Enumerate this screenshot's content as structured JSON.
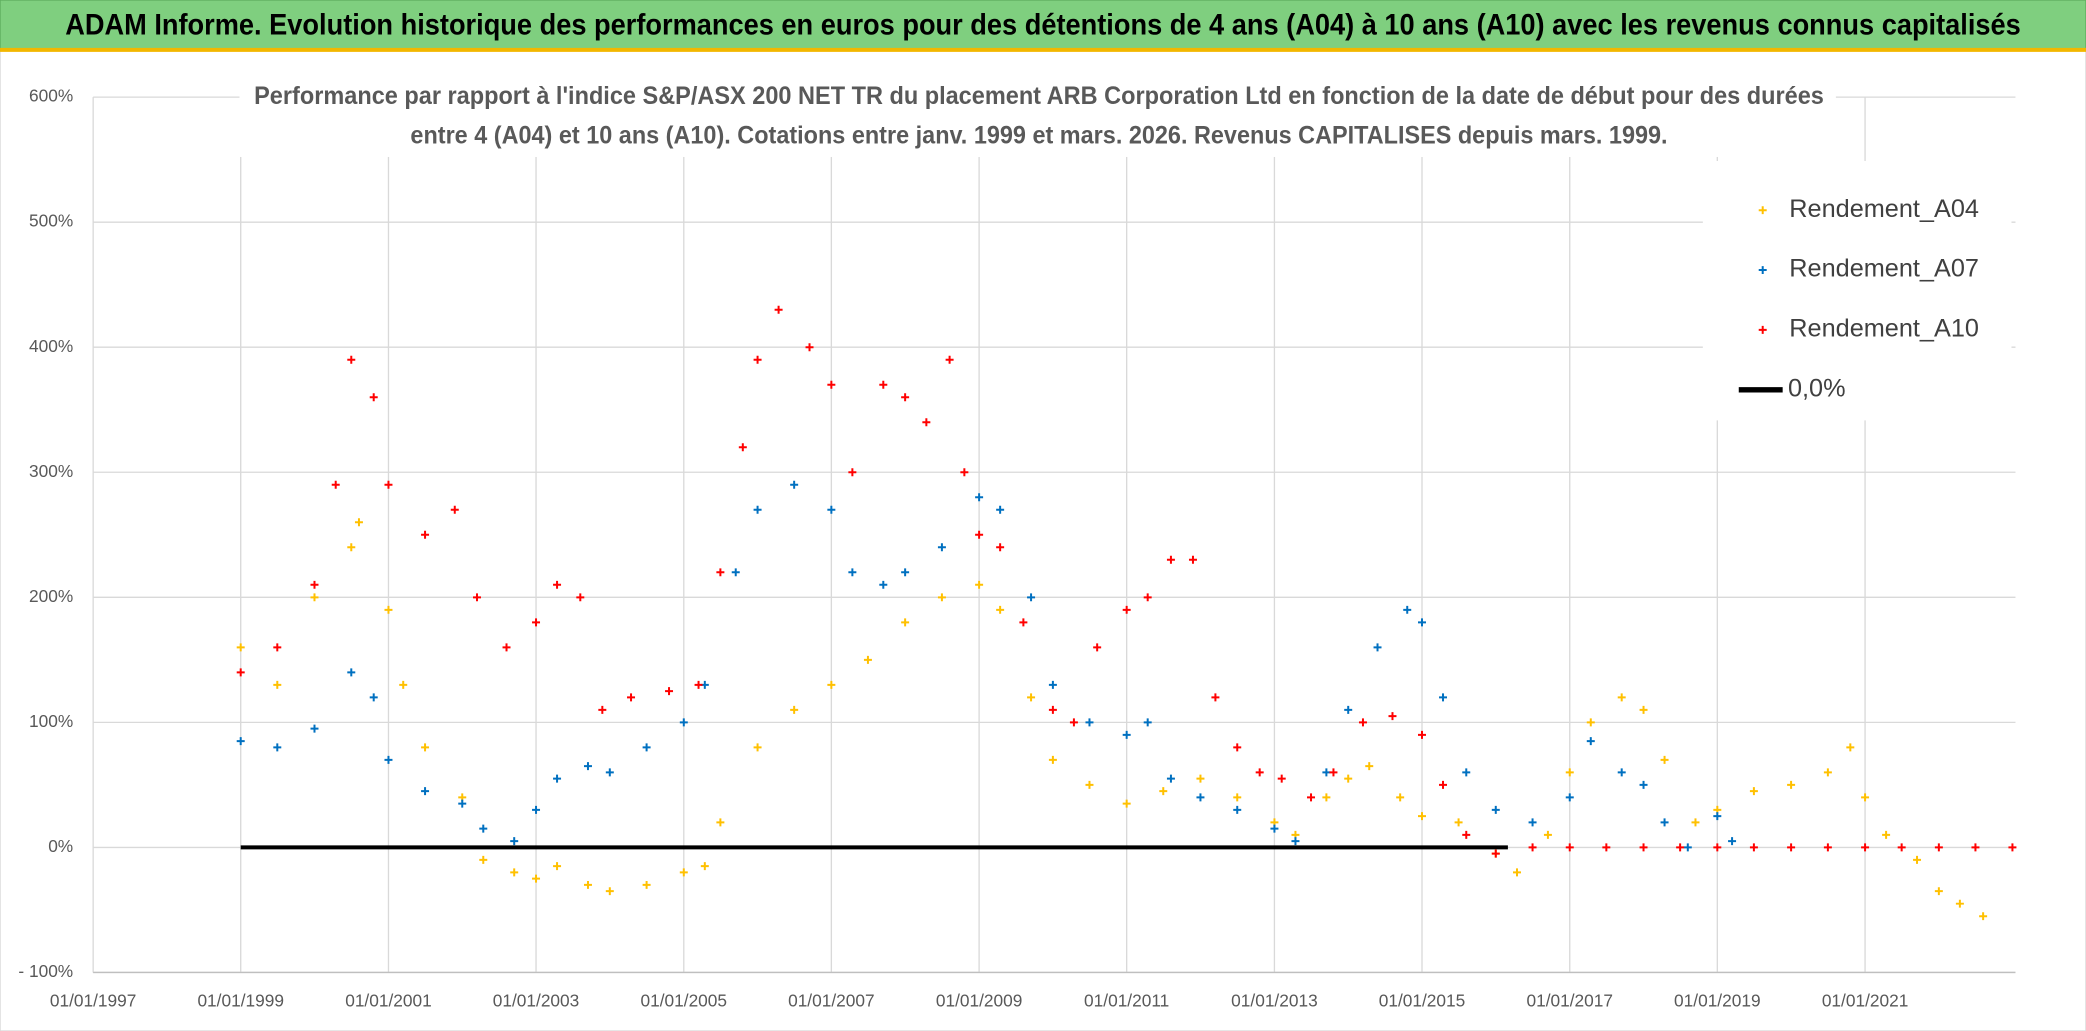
{
  "header": {
    "title": "ADAM Informe. Evolution historique des performances en euros pour des détentions de 4 ans (A04) à 10 ans (A10) avec les revenus connus capitalisés"
  },
  "chart_data": {
    "type": "scatter",
    "title_lines": [
      "Performance par rapport à l'indice S&P/ASX 200 NET TR  du placement ARB Corporation Ltd en fonction de la date de début pour des durées",
      "entre 4 (A04) et 10 ans (A10). Cotations entre janv. 1999 et mars. 2026. Revenus CAPITALISES depuis mars. 1999."
    ],
    "xlim": [
      "1997-01-01",
      "2023-01-15"
    ],
    "xticks": [
      {
        "value": "1997-01-01",
        "label": "01/01/1997"
      },
      {
        "value": "1999-01-01",
        "label": "01/01/1999"
      },
      {
        "value": "2001-01-01",
        "label": "01/01/2001"
      },
      {
        "value": "2003-01-01",
        "label": "01/01/2003"
      },
      {
        "value": "2005-01-01",
        "label": "01/01/2005"
      },
      {
        "value": "2007-01-01",
        "label": "01/01/2007"
      },
      {
        "value": "2009-01-01",
        "label": "01/01/2009"
      },
      {
        "value": "2011-01-01",
        "label": "01/01/2011"
      },
      {
        "value": "2013-01-01",
        "label": "01/01/2013"
      },
      {
        "value": "2015-01-01",
        "label": "01/01/2015"
      },
      {
        "value": "2017-01-01",
        "label": "01/01/2017"
      },
      {
        "value": "2019-01-01",
        "label": "01/01/2019"
      },
      {
        "value": "2021-01-01",
        "label": "01/01/2021"
      }
    ],
    "ylim": [
      -100,
      600
    ],
    "yticks": [
      {
        "value": -100,
        "label": "- 100%"
      },
      {
        "value": 0,
        "label": "0%"
      },
      {
        "value": 100,
        "label": "100%"
      },
      {
        "value": 200,
        "label": "200%"
      },
      {
        "value": 300,
        "label": "300%"
      },
      {
        "value": 400,
        "label": "400%"
      },
      {
        "value": 500,
        "label": "500%"
      },
      {
        "value": 600,
        "label": "600%"
      }
    ],
    "grid": true,
    "legend": "upper right",
    "series": [
      {
        "name": "Rendement_A04",
        "color": "#FFC000",
        "marker": "plus",
        "x": [
          "1999-01-01",
          "1999-07-01",
          "2000-01-01",
          "2000-07-01",
          "2000-08-08",
          "2001-01-01",
          "2001-03-15",
          "2001-07-01",
          "2002-01-01",
          "2002-04-15",
          "2002-09-15",
          "2003-01-01",
          "2003-04-15",
          "2003-09-15",
          "2004-01-01",
          "2004-07-01",
          "2005-01-01",
          "2005-04-15",
          "2005-07-01",
          "2006-01-01",
          "2006-07-01",
          "2007-01-01",
          "2007-07-01",
          "2008-01-01",
          "2008-07-01",
          "2009-01-01",
          "2009-04-15",
          "2009-09-15",
          "2010-01-01",
          "2010-07-01",
          "2011-01-01",
          "2011-07-01",
          "2012-01-01",
          "2012-07-01",
          "2013-01-01",
          "2013-04-15",
          "2013-09-15",
          "2014-01-01",
          "2014-04-15",
          "2014-09-15",
          "2015-01-01",
          "2015-07-01",
          "2016-01-01",
          "2016-04-15",
          "2016-09-15",
          "2017-01-01",
          "2017-04-15",
          "2017-09-15",
          "2018-01-01",
          "2018-04-15",
          "2018-09-15",
          "2019-01-01",
          "2019-07-01",
          "2020-01-01",
          "2020-07-01",
          "2020-10-20",
          "2021-01-01",
          "2021-04-15",
          "2021-09-15",
          "2022-01-01",
          "2022-04-15",
          "2022-08-08"
        ],
        "values": [
          160,
          130,
          200,
          240,
          260,
          190,
          130,
          80,
          40,
          -10,
          -20,
          -25,
          -15,
          -30,
          -35,
          -30,
          -20,
          -15,
          20,
          80,
          110,
          130,
          150,
          180,
          200,
          210,
          190,
          120,
          70,
          50,
          35,
          45,
          55,
          40,
          20,
          10,
          40,
          55,
          65,
          40,
          25,
          20,
          -5,
          -20,
          10,
          60,
          100,
          120,
          110,
          70,
          20,
          30,
          45,
          50,
          60,
          80,
          40,
          10,
          -10,
          -35,
          -45,
          -55
        ]
      },
      {
        "name": "Rendement_A07",
        "color": "#0070C0",
        "marker": "plus",
        "x": [
          "1999-01-01",
          "1999-07-01",
          "2000-01-01",
          "2000-07-01",
          "2000-10-20",
          "2001-01-01",
          "2001-07-01",
          "2002-01-01",
          "2002-04-15",
          "2002-09-15",
          "2003-01-01",
          "2003-04-15",
          "2003-09-15",
          "2004-01-01",
          "2004-07-01",
          "2005-01-01",
          "2005-04-15",
          "2005-09-15",
          "2006-01-01",
          "2006-07-01",
          "2007-01-01",
          "2007-04-15",
          "2007-09-15",
          "2008-01-01",
          "2008-07-01",
          "2009-01-01",
          "2009-04-15",
          "2009-09-15",
          "2010-01-01",
          "2010-07-01",
          "2011-01-01",
          "2011-04-15",
          "2011-08-08",
          "2012-01-01",
          "2012-07-01",
          "2013-01-01",
          "2013-04-15",
          "2013-09-15",
          "2014-01-01",
          "2014-05-26",
          "2014-10-20",
          "2015-01-01",
          "2015-04-15",
          "2015-08-08",
          "2016-01-01",
          "2016-07-01",
          "2017-01-01",
          "2017-04-15",
          "2017-09-15",
          "2018-01-01",
          "2018-04-15",
          "2018-08-08",
          "2019-01-01",
          "2019-03-15"
        ],
        "values": [
          85,
          80,
          95,
          140,
          120,
          70,
          45,
          35,
          15,
          5,
          30,
          55,
          65,
          60,
          80,
          100,
          130,
          220,
          270,
          290,
          270,
          220,
          210,
          220,
          240,
          280,
          270,
          200,
          130,
          100,
          90,
          100,
          55,
          40,
          30,
          15,
          5,
          60,
          110,
          160,
          190,
          180,
          120,
          60,
          30,
          20,
          40,
          85,
          60,
          50,
          20,
          0,
          25,
          5
        ]
      },
      {
        "name": "Rendement_A10",
        "color": "#FF0000",
        "marker": "plus",
        "x": [
          "1999-01-01",
          "1999-07-01",
          "2000-01-01",
          "2000-04-15",
          "2000-07-01",
          "2000-10-20",
          "2001-01-01",
          "2001-07-01",
          "2001-11-25",
          "2002-03-15",
          "2002-08-08",
          "2003-01-01",
          "2003-04-15",
          "2003-08-08",
          "2003-11-25",
          "2004-04-15",
          "2004-10-20",
          "2005-03-15",
          "2005-07-01",
          "2005-10-20",
          "2006-01-01",
          "2006-04-15",
          "2006-09-15",
          "2007-01-01",
          "2007-04-15",
          "2007-09-15",
          "2008-01-01",
          "2008-04-15",
          "2008-08-08",
          "2008-10-20",
          "2009-01-01",
          "2009-04-15",
          "2009-08-08",
          "2010-01-01",
          "2010-04-15",
          "2010-08-08",
          "2011-01-01",
          "2011-04-15",
          "2011-08-08",
          "2011-11-25",
          "2012-03-15",
          "2012-07-01",
          "2012-10-20",
          "2013-02-06",
          "2013-07-01",
          "2013-10-20",
          "2014-03-15",
          "2014-08-08",
          "2015-01-01",
          "2015-04-15",
          "2015-08-08",
          "2016-01-01",
          "2016-07-01",
          "2017-01-01",
          "2017-07-01",
          "2018-01-01",
          "2018-07-01",
          "2019-01-01",
          "2019-07-01",
          "2020-01-01",
          "2020-07-01",
          "2021-01-01",
          "2021-07-01",
          "2022-01-01",
          "2022-07-01",
          "2022-12-31"
        ],
        "values": [
          140,
          160,
          210,
          290,
          390,
          360,
          290,
          250,
          270,
          200,
          160,
          180,
          210,
          200,
          110,
          120,
          125,
          130,
          220,
          320,
          390,
          430,
          400,
          370,
          300,
          370,
          360,
          340,
          390,
          300,
          250,
          240,
          180,
          110,
          100,
          160,
          190,
          200,
          230,
          230,
          120,
          80,
          60,
          55,
          40,
          60,
          100,
          105,
          90,
          50,
          10,
          -5,
          0,
          0,
          0,
          0,
          0,
          0,
          0,
          0,
          0,
          0,
          0,
          0,
          0,
          0
        ]
      },
      {
        "name": "0,0%",
        "color": "#000000",
        "marker": "line",
        "x": [
          "1999-01-01",
          "2016-03-01"
        ],
        "values": [
          0,
          0
        ]
      }
    ]
  }
}
